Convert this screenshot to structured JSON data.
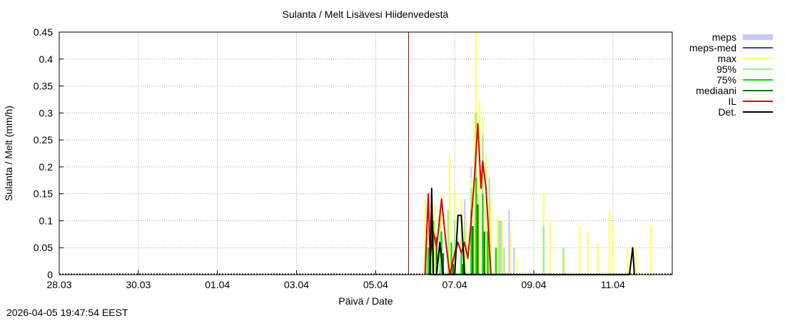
{
  "footer": {
    "timestamp": "2026-04-05 19:47:54 EEST"
  },
  "chart_data": {
    "type": "area",
    "title": "Sulanta / Melt  Lisävesi Hiidenvedestä",
    "xlabel": "Päivä / Date",
    "ylabel": "Sulanta / Melt (mm/h)",
    "xlim": [
      "2026-03-28T00:00",
      "2026-04-12T12:00"
    ],
    "ylim": [
      0,
      0.45
    ],
    "x_ticks": [
      "28.03",
      "30.03",
      "01.04",
      "03.04",
      "05.04",
      "07.04",
      "09.04",
      "11.04"
    ],
    "y_ticks": [
      "0",
      "0.05",
      "0.1",
      "0.15",
      "0.2",
      "0.25",
      "0.3",
      "0.35",
      "0.4",
      "0.45"
    ],
    "grid": true,
    "legend_position": "right",
    "forecast_start": "2026-04-05T20:00",
    "series": [
      {
        "name": "meps",
        "color": "#c8c8ff",
        "style": "bars",
        "points": [
          [
            "2026-04-06T11:00",
            0.03
          ],
          [
            "2026-04-06T16:00",
            0.06
          ],
          [
            "2026-04-07T00:00",
            0.07
          ],
          [
            "2026-04-07T06:00",
            0.14
          ],
          [
            "2026-04-07T10:00",
            0.2
          ],
          [
            "2026-04-07T14:00",
            0.15
          ],
          [
            "2026-04-08T04:00",
            0.1
          ],
          [
            "2026-04-08T09:00",
            0.12
          ],
          [
            "2026-04-08T12:00",
            0.05
          ]
        ]
      },
      {
        "name": "meps-med",
        "color": "#4040c0",
        "style": "line",
        "points": [
          [
            "2026-04-06T09:00",
            0.0
          ],
          [
            "2026-04-07T12:00",
            0.0
          ],
          [
            "2026-04-08T12:00",
            0.0
          ]
        ]
      },
      {
        "name": "max",
        "color": "#ffff66",
        "style": "bars",
        "points": [
          [
            "2026-04-06T06:00",
            0.14
          ],
          [
            "2026-04-06T09:00",
            0.05
          ],
          [
            "2026-04-06T12:00",
            0.13
          ],
          [
            "2026-04-06T16:00",
            0.15
          ],
          [
            "2026-04-06T21:00",
            0.22
          ],
          [
            "2026-04-07T00:00",
            0.16
          ],
          [
            "2026-04-07T04:00",
            0.14
          ],
          [
            "2026-04-07T07:00",
            0.1
          ],
          [
            "2026-04-07T10:00",
            0.18
          ],
          [
            "2026-04-07T12:00",
            0.3
          ],
          [
            "2026-04-07T13:00",
            0.45
          ],
          [
            "2026-04-07T15:00",
            0.32
          ],
          [
            "2026-04-07T17:00",
            0.29
          ],
          [
            "2026-04-07T19:00",
            0.22
          ],
          [
            "2026-04-07T22:00",
            0.14
          ],
          [
            "2026-04-08T02:00",
            0.11
          ],
          [
            "2026-04-08T05:00",
            0.1
          ],
          [
            "2026-04-08T10:00",
            0.08
          ],
          [
            "2026-04-08T14:00",
            0.03
          ],
          [
            "2026-04-09T06:00",
            0.15
          ],
          [
            "2026-04-09T10:00",
            0.1
          ],
          [
            "2026-04-09T18:00",
            0.05
          ],
          [
            "2026-04-10T04:00",
            0.09
          ],
          [
            "2026-04-10T09:00",
            0.08
          ],
          [
            "2026-04-10T15:00",
            0.06
          ],
          [
            "2026-04-10T22:00",
            0.12
          ],
          [
            "2026-04-11T00:00",
            0.09
          ],
          [
            "2026-04-11T09:00",
            0.05
          ],
          [
            "2026-04-11T14:00",
            0.05
          ],
          [
            "2026-04-11T23:00",
            0.09
          ]
        ]
      },
      {
        "name": "95%",
        "color": "#a0f080",
        "style": "bars",
        "points": [
          [
            "2026-04-06T07:00",
            0.07
          ],
          [
            "2026-04-06T10:00",
            0.12
          ],
          [
            "2026-04-06T15:00",
            0.12
          ],
          [
            "2026-04-06T20:00",
            0.12
          ],
          [
            "2026-04-07T00:00",
            0.1
          ],
          [
            "2026-04-07T06:00",
            0.08
          ],
          [
            "2026-04-07T10:00",
            0.16
          ],
          [
            "2026-04-07T13:00",
            0.3
          ],
          [
            "2026-04-07T17:00",
            0.26
          ],
          [
            "2026-04-07T21:00",
            0.18
          ],
          [
            "2026-04-08T03:00",
            0.1
          ],
          [
            "2026-04-08T06:00",
            0.05
          ],
          [
            "2026-04-09T06:00",
            0.09
          ],
          [
            "2026-04-09T18:00",
            0.05
          ]
        ]
      },
      {
        "name": "75%",
        "color": "#00e000",
        "style": "bars",
        "points": [
          [
            "2026-04-06T08:00",
            0.05
          ],
          [
            "2026-04-06T11:00",
            0.1
          ],
          [
            "2026-04-06T16:00",
            0.08
          ],
          [
            "2026-04-06T22:00",
            0.06
          ],
          [
            "2026-04-07T04:00",
            0.04
          ],
          [
            "2026-04-07T10:00",
            0.12
          ],
          [
            "2026-04-07T13:00",
            0.18
          ],
          [
            "2026-04-07T17:00",
            0.15
          ],
          [
            "2026-04-07T20:00",
            0.08
          ],
          [
            "2026-04-08T01:00",
            0.05
          ]
        ]
      },
      {
        "name": "mediaani",
        "color": "#008000",
        "style": "bars",
        "points": [
          [
            "2026-04-06T09:00",
            0.03
          ],
          [
            "2026-04-06T13:00",
            0.07
          ],
          [
            "2026-04-06T17:00",
            0.04
          ],
          [
            "2026-04-06T23:00",
            0.02
          ],
          [
            "2026-04-07T05:00",
            0.02
          ],
          [
            "2026-04-07T11:00",
            0.09
          ],
          [
            "2026-04-07T14:00",
            0.13
          ],
          [
            "2026-04-07T18:00",
            0.08
          ]
        ]
      },
      {
        "name": "IL",
        "color": "#e00000",
        "style": "line",
        "points": [
          [
            "2026-04-06T06:00",
            0.0
          ],
          [
            "2026-04-06T08:00",
            0.15
          ],
          [
            "2026-04-06T09:00",
            0.03
          ],
          [
            "2026-04-06T11:00",
            0.08
          ],
          [
            "2026-04-06T13:00",
            0.05
          ],
          [
            "2026-04-06T16:00",
            0.14
          ],
          [
            "2026-04-06T19:00",
            0.05
          ],
          [
            "2026-04-06T21:00",
            0.0
          ],
          [
            "2026-04-07T00:00",
            0.04
          ],
          [
            "2026-04-07T02:00",
            0.06
          ],
          [
            "2026-04-07T04:00",
            0.04
          ],
          [
            "2026-04-07T06:00",
            0.06
          ],
          [
            "2026-04-07T08:00",
            0.03
          ],
          [
            "2026-04-07T10:00",
            0.1
          ],
          [
            "2026-04-07T12:00",
            0.18
          ],
          [
            "2026-04-07T14:00",
            0.28
          ],
          [
            "2026-04-07T16:00",
            0.16
          ],
          [
            "2026-04-07T17:00",
            0.21
          ],
          [
            "2026-04-07T19:00",
            0.16
          ],
          [
            "2026-04-07T22:00",
            0.0
          ]
        ]
      },
      {
        "name": "Det.",
        "color": "#000000",
        "style": "line",
        "points": [
          [
            "2026-04-06T09:00",
            0.0
          ],
          [
            "2026-04-06T10:00",
            0.16
          ],
          [
            "2026-04-06T11:00",
            0.0
          ],
          [
            "2026-04-06T13:00",
            0.0
          ],
          [
            "2026-04-06T15:00",
            0.06
          ],
          [
            "2026-04-06T17:00",
            0.0
          ],
          [
            "2026-04-07T00:00",
            0.0
          ],
          [
            "2026-04-07T02:00",
            0.11
          ],
          [
            "2026-04-07T04:00",
            0.11
          ],
          [
            "2026-04-07T06:00",
            0.0
          ],
          [
            "2026-04-11T10:00",
            0.0
          ],
          [
            "2026-04-11T12:00",
            0.05
          ],
          [
            "2026-04-11T13:00",
            0.0
          ]
        ]
      }
    ]
  }
}
